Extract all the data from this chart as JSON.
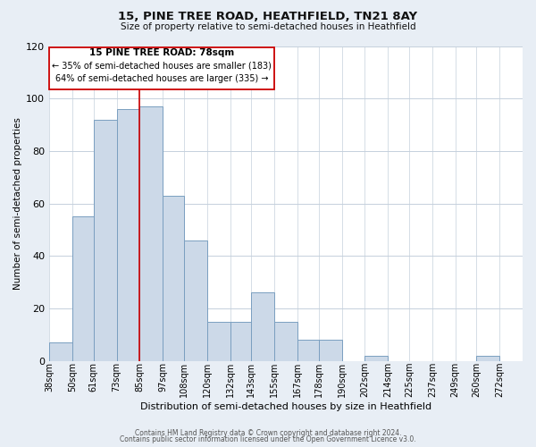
{
  "title": "15, PINE TREE ROAD, HEATHFIELD, TN21 8AY",
  "subtitle": "Size of property relative to semi-detached houses in Heathfield",
  "xlabel": "Distribution of semi-detached houses by size in Heathfield",
  "ylabel": "Number of semi-detached properties",
  "bin_labels": [
    "38sqm",
    "50sqm",
    "61sqm",
    "73sqm",
    "85sqm",
    "97sqm",
    "108sqm",
    "120sqm",
    "132sqm",
    "143sqm",
    "155sqm",
    "167sqm",
    "178sqm",
    "190sqm",
    "202sqm",
    "214sqm",
    "225sqm",
    "237sqm",
    "249sqm",
    "260sqm",
    "272sqm"
  ],
  "bin_edges": [
    38,
    50,
    61,
    73,
    85,
    97,
    108,
    120,
    132,
    143,
    155,
    167,
    178,
    190,
    202,
    214,
    225,
    237,
    249,
    260,
    272
  ],
  "bar_heights": [
    7,
    55,
    92,
    96,
    97,
    63,
    46,
    15,
    15,
    26,
    15,
    8,
    8,
    0,
    2,
    0,
    0,
    0,
    0,
    2,
    0
  ],
  "bar_fill": "#ccd9e8",
  "bar_edge": "#7a9fc0",
  "property_line_x": 85,
  "property_label": "15 PINE TREE ROAD: 78sqm",
  "annotation_line1": "← 35% of semi-detached houses are smaller (183)",
  "annotation_line2": "64% of semi-detached houses are larger (335) →",
  "annotation_box_color": "#cc0000",
  "ylim": [
    0,
    120
  ],
  "yticks": [
    0,
    20,
    40,
    60,
    80,
    100,
    120
  ],
  "footer1": "Contains HM Land Registry data © Crown copyright and database right 2024.",
  "footer2": "Contains public sector information licensed under the Open Government Licence v3.0.",
  "bg_color": "#e8eef5",
  "plot_bg_color": "#ffffff",
  "grid_color": "#c5d0dc"
}
